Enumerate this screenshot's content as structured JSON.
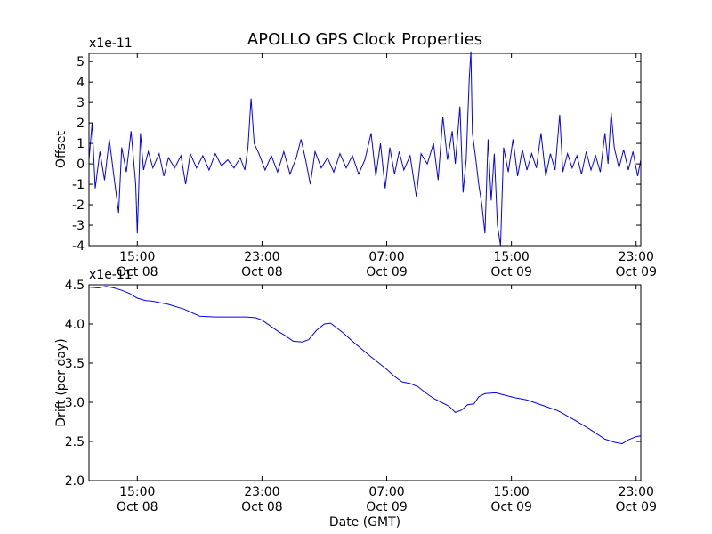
{
  "title": "APOLLO GPS Clock Properties",
  "xlabel": "Date (GMT)",
  "colors": {
    "series": "#0000ff",
    "axes": "#000000",
    "background": "#ffffff"
  },
  "x_ticks": [
    {
      "value": 15,
      "time": "15:00",
      "date": "Oct 08"
    },
    {
      "value": 23,
      "time": "23:00",
      "date": "Oct 08"
    },
    {
      "value": 31,
      "time": "07:00",
      "date": "Oct 09"
    },
    {
      "value": 39,
      "time": "15:00",
      "date": "Oct 09"
    },
    {
      "value": 47,
      "time": "23:00",
      "date": "Oct 09"
    }
  ],
  "chart_data": [
    {
      "type": "line",
      "ylabel": "Offset",
      "scale_label": "x1e-11",
      "xlim": [
        11.9,
        47.3
      ],
      "ylim": [
        -4,
        5.4
      ],
      "yticks": [
        -4,
        -3,
        -2,
        -1,
        0,
        1,
        2,
        3,
        4,
        5
      ],
      "grid": false,
      "series": [
        {
          "points": [
            [
              11.9,
              0.2
            ],
            [
              12.1,
              2.0
            ],
            [
              12.3,
              -1.2
            ],
            [
              12.6,
              0.6
            ],
            [
              12.9,
              -0.8
            ],
            [
              13.2,
              1.2
            ],
            [
              13.5,
              -0.6
            ],
            [
              13.8,
              -2.4
            ],
            [
              14.0,
              0.8
            ],
            [
              14.3,
              -0.4
            ],
            [
              14.6,
              1.6
            ],
            [
              14.9,
              -1.0
            ],
            [
              15.0,
              -3.4
            ],
            [
              15.2,
              1.5
            ],
            [
              15.4,
              -0.3
            ],
            [
              15.7,
              0.6
            ],
            [
              16.0,
              -0.2
            ],
            [
              16.4,
              0.5
            ],
            [
              16.7,
              -0.6
            ],
            [
              17.0,
              0.3
            ],
            [
              17.4,
              -0.2
            ],
            [
              17.8,
              0.4
            ],
            [
              18.1,
              -1.0
            ],
            [
              18.4,
              0.5
            ],
            [
              18.8,
              -0.2
            ],
            [
              19.2,
              0.4
            ],
            [
              19.6,
              -0.3
            ],
            [
              20.0,
              0.5
            ],
            [
              20.4,
              -0.1
            ],
            [
              20.8,
              0.2
            ],
            [
              21.2,
              -0.2
            ],
            [
              21.6,
              0.3
            ],
            [
              21.9,
              -0.3
            ],
            [
              22.1,
              0.8
            ],
            [
              22.3,
              3.2
            ],
            [
              22.5,
              1.0
            ],
            [
              22.8,
              0.5
            ],
            [
              23.2,
              -0.3
            ],
            [
              23.6,
              0.4
            ],
            [
              24.0,
              -0.4
            ],
            [
              24.4,
              0.6
            ],
            [
              24.8,
              -0.5
            ],
            [
              25.2,
              0.3
            ],
            [
              25.5,
              1.2
            ],
            [
              25.8,
              0.2
            ],
            [
              26.1,
              -1.0
            ],
            [
              26.4,
              0.6
            ],
            [
              26.8,
              -0.2
            ],
            [
              27.2,
              0.3
            ],
            [
              27.6,
              -0.4
            ],
            [
              28.0,
              0.5
            ],
            [
              28.4,
              -0.2
            ],
            [
              28.8,
              0.4
            ],
            [
              29.2,
              -0.5
            ],
            [
              29.6,
              0.2
            ],
            [
              30.0,
              1.5
            ],
            [
              30.3,
              -0.6
            ],
            [
              30.6,
              1.0
            ],
            [
              30.9,
              -1.2
            ],
            [
              31.2,
              0.8
            ],
            [
              31.5,
              -0.5
            ],
            [
              31.8,
              0.6
            ],
            [
              32.1,
              -0.3
            ],
            [
              32.5,
              0.4
            ],
            [
              32.9,
              -1.6
            ],
            [
              33.2,
              0.5
            ],
            [
              33.6,
              0.0
            ],
            [
              34.0,
              1.0
            ],
            [
              34.3,
              -0.8
            ],
            [
              34.6,
              2.3
            ],
            [
              34.9,
              0.2
            ],
            [
              35.2,
              1.6
            ],
            [
              35.4,
              0.0
            ],
            [
              35.7,
              2.8
            ],
            [
              35.9,
              -1.4
            ],
            [
              36.1,
              0.2
            ],
            [
              36.3,
              4.2
            ],
            [
              36.4,
              5.5
            ],
            [
              36.5,
              1.5
            ],
            [
              36.7,
              0.3
            ],
            [
              36.9,
              -1.0
            ],
            [
              37.1,
              -2.0
            ],
            [
              37.3,
              -3.4
            ],
            [
              37.5,
              1.2
            ],
            [
              37.7,
              -1.8
            ],
            [
              37.9,
              0.5
            ],
            [
              38.1,
              -3.0
            ],
            [
              38.3,
              -4.0
            ],
            [
              38.5,
              0.8
            ],
            [
              38.8,
              -0.4
            ],
            [
              39.1,
              1.2
            ],
            [
              39.4,
              -0.6
            ],
            [
              39.7,
              0.7
            ],
            [
              40.0,
              -0.3
            ],
            [
              40.3,
              0.5
            ],
            [
              40.6,
              -0.2
            ],
            [
              40.9,
              1.5
            ],
            [
              41.2,
              -0.6
            ],
            [
              41.5,
              0.5
            ],
            [
              41.8,
              -0.3
            ],
            [
              42.1,
              2.4
            ],
            [
              42.3,
              -0.4
            ],
            [
              42.6,
              0.5
            ],
            [
              42.9,
              -0.2
            ],
            [
              43.2,
              0.4
            ],
            [
              43.5,
              -0.5
            ],
            [
              43.8,
              0.6
            ],
            [
              44.1,
              -0.3
            ],
            [
              44.4,
              0.4
            ],
            [
              44.7,
              -0.4
            ],
            [
              45.0,
              1.5
            ],
            [
              45.2,
              0.0
            ],
            [
              45.4,
              2.5
            ],
            [
              45.6,
              0.8
            ],
            [
              45.9,
              -0.2
            ],
            [
              46.2,
              0.7
            ],
            [
              46.5,
              -0.3
            ],
            [
              46.8,
              0.6
            ],
            [
              47.1,
              -0.6
            ],
            [
              47.3,
              0.2
            ]
          ]
        }
      ]
    },
    {
      "type": "line",
      "ylabel": "Drift (per day)",
      "scale_label": "x1e-11",
      "xlim": [
        11.9,
        47.3
      ],
      "ylim": [
        2.0,
        4.5
      ],
      "yticks": [
        2.0,
        2.5,
        3.0,
        3.5,
        4.0,
        4.5
      ],
      "ytick_labels": [
        "2.0",
        "2.5",
        "3.0",
        "3.5",
        "4.0",
        "4.5"
      ],
      "grid": false,
      "series": [
        {
          "points": [
            [
              11.9,
              4.47
            ],
            [
              12.5,
              4.46
            ],
            [
              13.0,
              4.48
            ],
            [
              13.5,
              4.46
            ],
            [
              14.0,
              4.43
            ],
            [
              14.5,
              4.39
            ],
            [
              15.0,
              4.33
            ],
            [
              15.5,
              4.3
            ],
            [
              16.0,
              4.29
            ],
            [
              17.0,
              4.25
            ],
            [
              18.0,
              4.19
            ],
            [
              19.0,
              4.1
            ],
            [
              20.0,
              4.09
            ],
            [
              21.0,
              4.09
            ],
            [
              22.0,
              4.09
            ],
            [
              22.6,
              4.08
            ],
            [
              23.0,
              4.05
            ],
            [
              23.5,
              3.98
            ],
            [
              24.0,
              3.91
            ],
            [
              24.5,
              3.85
            ],
            [
              25.0,
              3.78
            ],
            [
              25.6,
              3.77
            ],
            [
              26.0,
              3.8
            ],
            [
              26.5,
              3.92
            ],
            [
              27.0,
              4.0
            ],
            [
              27.4,
              4.01
            ],
            [
              27.8,
              3.95
            ],
            [
              28.3,
              3.87
            ],
            [
              28.8,
              3.78
            ],
            [
              29.4,
              3.68
            ],
            [
              30.0,
              3.58
            ],
            [
              30.5,
              3.5
            ],
            [
              31.0,
              3.42
            ],
            [
              31.5,
              3.33
            ],
            [
              32.0,
              3.26
            ],
            [
              32.5,
              3.24
            ],
            [
              33.0,
              3.2
            ],
            [
              33.5,
              3.12
            ],
            [
              34.0,
              3.05
            ],
            [
              34.5,
              3.0
            ],
            [
              35.0,
              2.95
            ],
            [
              35.4,
              2.87
            ],
            [
              35.8,
              2.9
            ],
            [
              36.2,
              2.97
            ],
            [
              36.6,
              2.98
            ],
            [
              36.9,
              3.07
            ],
            [
              37.3,
              3.11
            ],
            [
              38.0,
              3.12
            ],
            [
              38.6,
              3.09
            ],
            [
              39.2,
              3.06
            ],
            [
              40.0,
              3.03
            ],
            [
              41.0,
              2.96
            ],
            [
              42.0,
              2.89
            ],
            [
              43.0,
              2.78
            ],
            [
              44.0,
              2.66
            ],
            [
              45.0,
              2.53
            ],
            [
              45.6,
              2.49
            ],
            [
              46.1,
              2.47
            ],
            [
              46.5,
              2.52
            ],
            [
              47.0,
              2.56
            ],
            [
              47.3,
              2.57
            ]
          ]
        }
      ]
    }
  ]
}
